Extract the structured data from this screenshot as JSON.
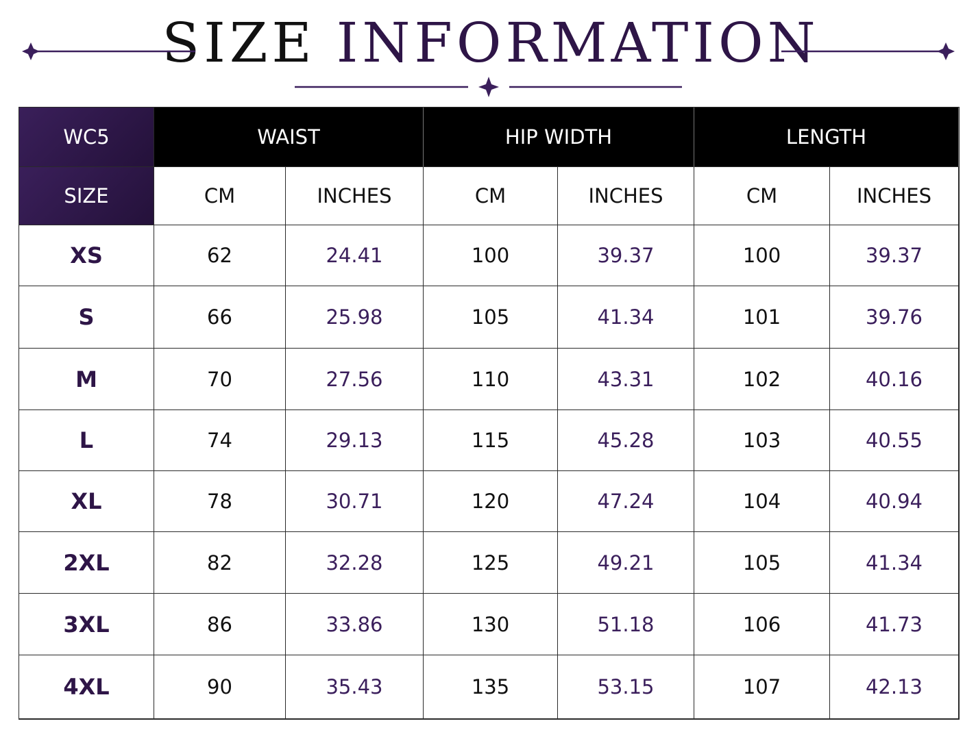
{
  "header": {
    "title_part1": "SIZE",
    "title_part2": "INFORMATION"
  },
  "table": {
    "model": "WC5",
    "groups": [
      "WAIST",
      "HIP WIDTH",
      "LENGTH"
    ],
    "size_label": "SIZE",
    "units": [
      "CM",
      "INCHES",
      "CM",
      "INCHES",
      "CM",
      "INCHES"
    ],
    "rows": [
      [
        "XS",
        62,
        24.41,
        100,
        39.37,
        100,
        39.37
      ],
      [
        "S",
        66,
        25.98,
        105,
        41.34,
        101,
        39.76
      ],
      [
        "M",
        70,
        27.56,
        110,
        43.31,
        102,
        40.16
      ],
      [
        "L",
        74,
        29.13,
        115,
        45.28,
        103,
        40.55
      ],
      [
        "XL",
        78,
        30.71,
        120,
        47.24,
        104,
        40.94
      ],
      [
        "2XL",
        82,
        32.28,
        125,
        49.21,
        105,
        41.34
      ],
      [
        "3XL",
        86,
        33.86,
        130,
        51.18,
        106,
        41.73
      ],
      [
        "4XL",
        90,
        35.43,
        135,
        53.15,
        107,
        42.13
      ]
    ]
  }
}
